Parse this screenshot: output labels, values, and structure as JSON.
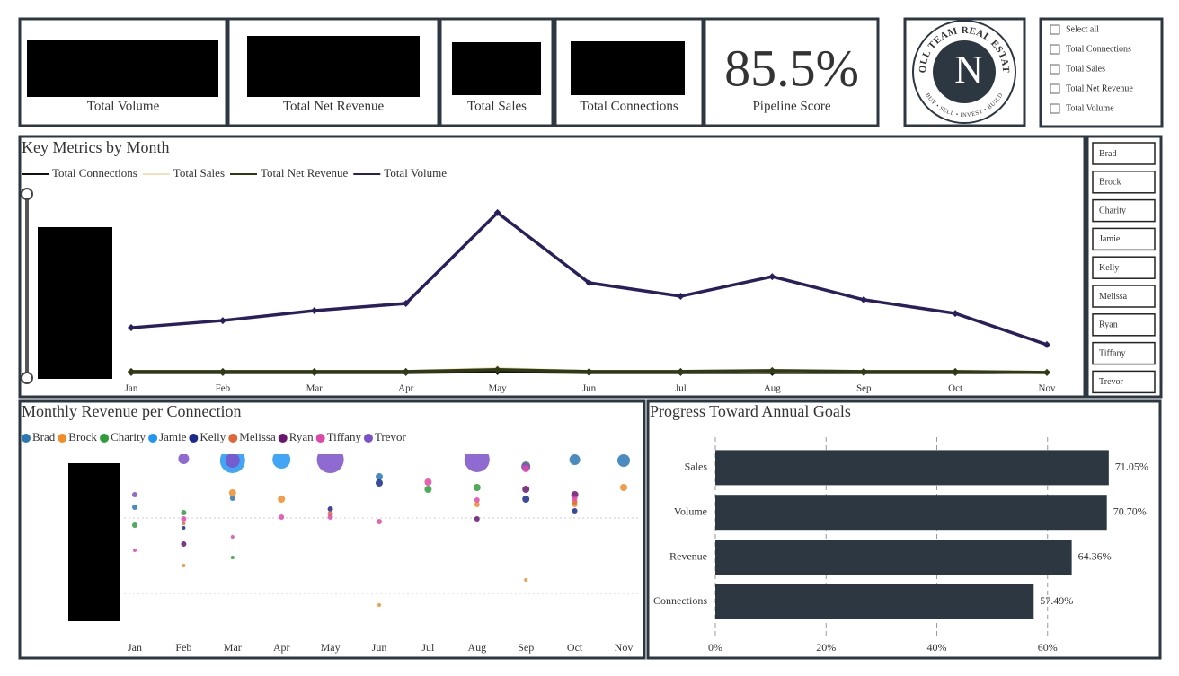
{
  "cards": [
    {
      "label": "Total Volume"
    },
    {
      "label": "Total Net Revenue"
    },
    {
      "label": "Total Sales"
    },
    {
      "label": "Total Connections"
    },
    {
      "value": "85.5%",
      "label": "Pipeline Score"
    }
  ],
  "logo": {
    "top": "NOLL TEAM REAL ESTATE",
    "bottom": "BUY • SELL • INVEST • BUILD",
    "letter": "N"
  },
  "measure_slicer": {
    "options": [
      "Select all",
      "Total Connections",
      "Total Sales",
      "Total Net Revenue",
      "Total Volume"
    ]
  },
  "agent_slicer": {
    "options": [
      "Brad",
      "Brock",
      "Charity",
      "Jamie",
      "Kelly",
      "Melissa",
      "Ryan",
      "Tiffany",
      "Trevor"
    ]
  },
  "chart_data": [
    {
      "type": "line",
      "title": "Key Metrics by Month",
      "categories": [
        "Jan",
        "Feb",
        "Mar",
        "Apr",
        "May",
        "Jun",
        "Jul",
        "Aug",
        "Sep",
        "Oct",
        "Nov"
      ],
      "ylim": [
        0,
        100
      ],
      "series": [
        {
          "name": "Total Connections",
          "color": "#111111",
          "values": [
            2.5,
            2.5,
            2.5,
            2.5,
            3,
            2.5,
            2.5,
            2.5,
            2.5,
            2.5,
            2.5
          ]
        },
        {
          "name": "Total Sales",
          "color": "#f3dfb8",
          "values": [
            3,
            3,
            3,
            3,
            4.5,
            3,
            3,
            3.5,
            3,
            3,
            2.5
          ]
        },
        {
          "name": "Total Net Revenue",
          "color": "#2f3a12",
          "values": [
            3,
            3,
            3,
            3,
            4,
            3,
            3,
            3.5,
            3,
            3,
            2.5
          ]
        },
        {
          "name": "Total Volume",
          "color": "#2a1f5c",
          "values": [
            26.8,
            30.7,
            36.1,
            40.0,
            89.3,
            51.2,
            43.9,
            54.6,
            42.0,
            34.6,
            17.6
          ]
        }
      ]
    },
    {
      "type": "bubble",
      "title": "Monthly Revenue per Connection",
      "categories": [
        "Jan",
        "Feb",
        "Mar",
        "Apr",
        "May",
        "Jun",
        "Jul",
        "Aug",
        "Sep",
        "Oct",
        "Nov"
      ],
      "ylim": [
        0,
        100
      ],
      "gridlines": [
        24.5,
        66.5
      ],
      "series": [
        {
          "name": "Brad",
          "color": "#2a78b4",
          "x": [
            "Jan",
            "Mar",
            "Jun",
            "Oct",
            "Nov"
          ],
          "values": [
            72.5,
            77.5,
            89.5,
            99,
            98.5
          ],
          "sizes": [
            3,
            3,
            4,
            6,
            7
          ]
        },
        {
          "name": "Brock",
          "color": "#f28c28",
          "x": [
            "Feb",
            "Mar",
            "Apr",
            "Jun",
            "Aug",
            "Sep",
            "Oct",
            "Nov"
          ],
          "values": [
            40,
            80.5,
            77,
            18,
            74,
            32,
            74,
            83.5
          ],
          "sizes": [
            2,
            4,
            4,
            2,
            3,
            2,
            3,
            4
          ]
        },
        {
          "name": "Charity",
          "color": "#2e9e3a",
          "x": [
            "Jan",
            "Feb",
            "Mar",
            "Jul",
            "Aug",
            "Sep"
          ],
          "values": [
            62.5,
            69.5,
            44.5,
            82.5,
            83.5,
            95.5
          ],
          "sizes": [
            3,
            3,
            2,
            4,
            4,
            5
          ]
        },
        {
          "name": "Jamie",
          "color": "#2196f3",
          "x": [
            "Mar",
            "Apr"
          ],
          "values": [
            98.5,
            99
          ],
          "sizes": [
            14,
            10
          ]
        },
        {
          "name": "Kelly",
          "color": "#1a2a8c",
          "x": [
            "Feb",
            "May",
            "Jun",
            "Sep",
            "Oct"
          ],
          "values": [
            61,
            71.5,
            86,
            77,
            70.5
          ],
          "sizes": [
            2,
            3,
            4,
            4,
            3
          ]
        },
        {
          "name": "Melissa",
          "color": "#e0673a",
          "x": [
            "Feb",
            "May",
            "Oct"
          ],
          "values": [
            63.5,
            69,
            75.5
          ],
          "sizes": [
            2,
            3,
            3
          ]
        },
        {
          "name": "Ryan",
          "color": "#6a1470",
          "x": [
            "Feb",
            "Aug",
            "Sep",
            "Oct"
          ],
          "values": [
            52,
            66,
            82.5,
            79.5
          ],
          "sizes": [
            3,
            3,
            4,
            4
          ]
        },
        {
          "name": "Tiffany",
          "color": "#e048a8",
          "x": [
            "Jan",
            "Feb",
            "Mar",
            "Apr",
            "May",
            "Jun",
            "Jul",
            "Aug",
            "Sep",
            "Oct"
          ],
          "values": [
            48.5,
            66,
            56,
            67,
            67,
            64.5,
            86.5,
            76.5,
            94,
            77.5
          ],
          "sizes": [
            2,
            3,
            2,
            3,
            3,
            3,
            4,
            3,
            4,
            3
          ]
        },
        {
          "name": "Trevor",
          "color": "#7b50c8",
          "x": [
            "Jan",
            "Feb",
            "Mar",
            "May",
            "Aug",
            "Sep"
          ],
          "values": [
            79.5,
            99.5,
            98.5,
            99,
            99,
            95
          ],
          "sizes": [
            3,
            6,
            8,
            15,
            14,
            5
          ]
        }
      ]
    },
    {
      "type": "bar",
      "orientation": "horizontal",
      "title": "Progress Toward Annual Goals",
      "categories": [
        "Sales",
        "Volume",
        "Revenue",
        "Connections"
      ],
      "values": [
        71.05,
        70.7,
        64.36,
        57.49
      ],
      "value_labels": [
        "71.05%",
        "70.70%",
        "64.36%",
        "57.49%"
      ],
      "color": "#2d3741",
      "xlim": [
        0,
        80
      ],
      "xticks": [
        {
          "value": 0,
          "label": "0%"
        },
        {
          "value": 20,
          "label": "20%"
        },
        {
          "value": 40,
          "label": "40%"
        },
        {
          "value": 60,
          "label": "60%"
        }
      ],
      "grid": true
    }
  ]
}
